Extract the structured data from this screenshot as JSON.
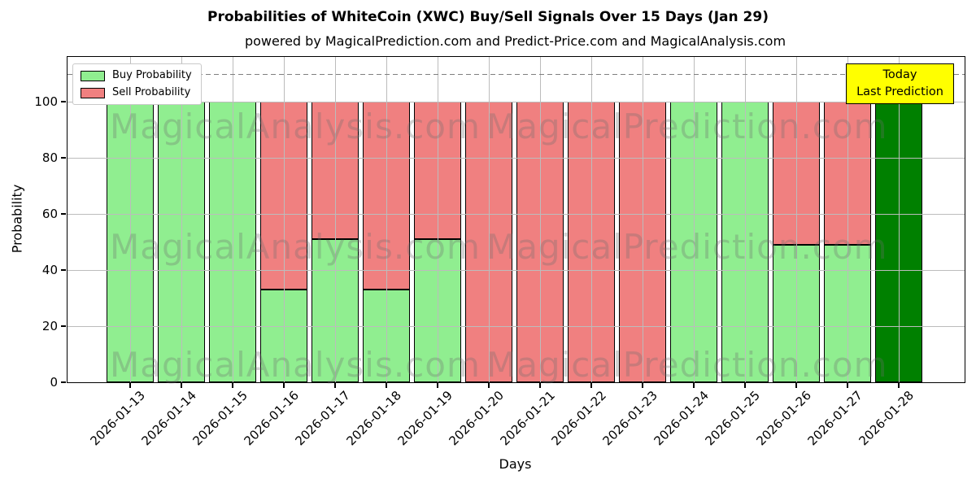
{
  "title": "Probabilities of WhiteCoin (XWC) Buy/Sell Signals Over 15 Days (Jan 29)",
  "subtitle": "powered by MagicalPrediction.com and Predict-Price.com and MagicalAnalysis.com",
  "axes": {
    "xlabel": "Days",
    "ylabel": "Probability",
    "yticks": [
      0,
      20,
      40,
      60,
      80,
      100
    ]
  },
  "legend": {
    "buy_label": "Buy Probability",
    "sell_label": "Sell Probability"
  },
  "today_box": {
    "line1": "Today",
    "line2": "Last Prediction",
    "bg": "#ffff00"
  },
  "watermarks": {
    "left": "MagicalAnalysis.com",
    "right": "MagicalPrediction.com"
  },
  "colors": {
    "buy": "#90EE90",
    "sell": "#F08080",
    "today": "#008000",
    "grid": "#bcbcbc",
    "dashed_line": "#7f7f7f",
    "bar_edge": "#000000"
  },
  "chart_data": {
    "type": "bar",
    "stacked": true,
    "title": "Probabilities of WhiteCoin (XWC) Buy/Sell Signals Over 15 Days (Jan 29)",
    "xlabel": "Days",
    "ylabel": "Probability",
    "ylim": [
      0,
      116
    ],
    "yticks": [
      0,
      20,
      40,
      60,
      80,
      100
    ],
    "grid": true,
    "legend_position": "upper left",
    "dashed_line_y": 110,
    "categories": [
      "2026-01-13",
      "2026-01-14",
      "2026-01-15",
      "2026-01-16",
      "2026-01-17",
      "2026-01-18",
      "2026-01-19",
      "2026-01-20",
      "2026-01-21",
      "2026-01-22",
      "2026-01-23",
      "2026-01-24",
      "2026-01-25",
      "2026-01-26",
      "2026-01-27",
      "2026-01-28"
    ],
    "series": [
      {
        "name": "Buy Probability",
        "color": "#90EE90",
        "values": [
          100,
          100,
          100,
          33,
          51,
          33,
          51,
          0,
          0,
          0,
          0,
          100,
          100,
          49,
          49,
          100
        ]
      },
      {
        "name": "Sell Probability",
        "color": "#F08080",
        "values": [
          0,
          0,
          0,
          67,
          49,
          67,
          49,
          100,
          100,
          100,
          100,
          0,
          0,
          51,
          51,
          0
        ]
      }
    ],
    "today_bar": {
      "index": 15,
      "category": "2026-01-28",
      "color": "#008000",
      "label": "Today / Last Prediction"
    }
  }
}
